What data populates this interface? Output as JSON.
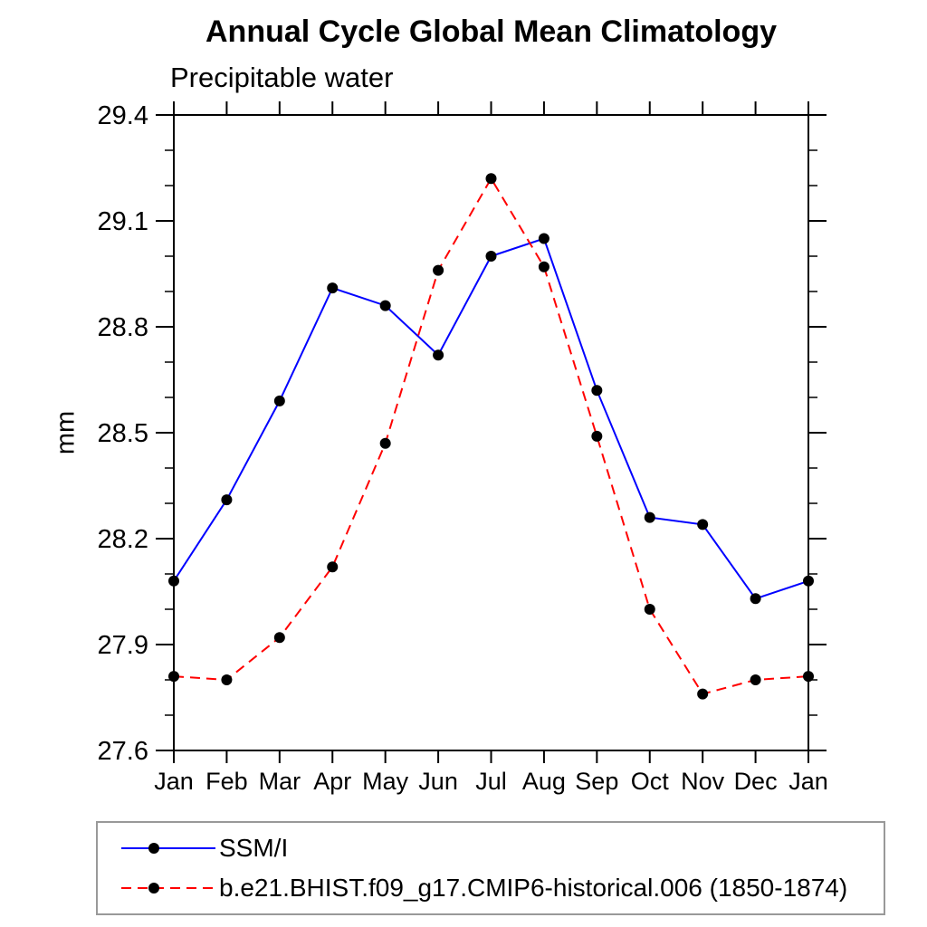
{
  "header": {
    "title": "Annual Cycle Global Mean Climatology",
    "subtitle": "Precipitable water"
  },
  "chart_data": {
    "type": "line",
    "title": "Annual Cycle Global Mean Climatology",
    "subtitle": "Precipitable water",
    "xlabel": "",
    "ylabel": "mm",
    "categories": [
      "Jan",
      "Feb",
      "Mar",
      "Apr",
      "May",
      "Jun",
      "Jul",
      "Aug",
      "Sep",
      "Oct",
      "Nov",
      "Dec",
      "Jan"
    ],
    "ylim": [
      27.6,
      29.4
    ],
    "ytick_major": [
      27.6,
      27.9,
      28.2,
      28.5,
      28.8,
      29.1,
      29.4
    ],
    "ytick_minor_step": 0.1,
    "grid": false,
    "legend_position": "bottom-left",
    "axis_color": "#000000",
    "marker_color": "#000000",
    "series": [
      {
        "name": "SSM/I",
        "color": "#0000ff",
        "line_style": "solid",
        "marker": "circle",
        "values": [
          28.08,
          28.31,
          28.59,
          28.91,
          28.86,
          28.72,
          29.0,
          29.05,
          28.62,
          28.26,
          28.24,
          28.03,
          28.08
        ]
      },
      {
        "name": "b.e21.BHIST.f09_g17.CMIP6-historical.006 (1850-1874)",
        "color": "#ff0000",
        "line_style": "dashed",
        "marker": "circle",
        "values": [
          27.81,
          27.8,
          27.92,
          28.12,
          28.47,
          28.96,
          29.22,
          28.97,
          28.49,
          28.0,
          27.76,
          27.8,
          27.81
        ]
      }
    ]
  }
}
